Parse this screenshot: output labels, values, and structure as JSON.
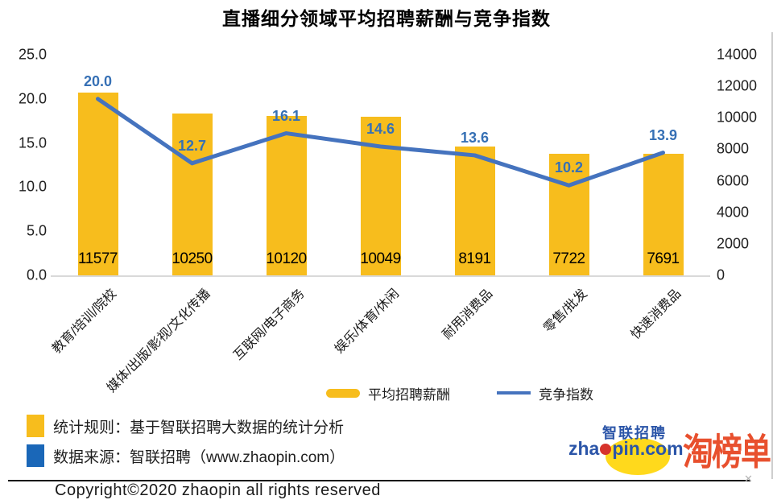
{
  "title": "直播细分领域平均招聘薪酬与竞争指数",
  "chart_data": {
    "type": "bar",
    "combo": "bar+line",
    "title": "直播细分领域平均招聘薪酬与竞争指数",
    "categories": [
      "教育/培训/院校",
      "媒体/出版/影视/文化传播",
      "互联网/电子商务",
      "娱乐/体育/休闲",
      "耐用消费品",
      "零售/批发",
      "快速消费品"
    ],
    "series": [
      {
        "name": "平均招聘薪酬",
        "type": "bar",
        "axis": "right",
        "color": "#F7BD1D",
        "values": [
          11577,
          10250,
          10120,
          10049,
          8191,
          7722,
          7691
        ]
      },
      {
        "name": "竞争指数",
        "type": "line",
        "axis": "left",
        "color": "#4573BE",
        "values": [
          20.0,
          12.7,
          16.1,
          14.6,
          13.6,
          10.2,
          13.9
        ]
      }
    ],
    "left_axis": {
      "min": 0,
      "max": 25,
      "tick_labels": [
        "0.0",
        "5.0",
        "10.0",
        "15.0",
        "20.0",
        "25.0"
      ]
    },
    "right_axis": {
      "min": 0,
      "max": 14000,
      "tick_labels": [
        "0",
        "2000",
        "4000",
        "6000",
        "8000",
        "10000",
        "12000",
        "14000"
      ]
    },
    "grid": false,
    "legend_position": "bottom-center",
    "line_label_color": "#3670B5",
    "bar_label_color": "#000000"
  },
  "legend": {
    "bar_label": "平均招聘薪酬",
    "line_label": "竞争指数"
  },
  "notes": [
    {
      "icon_color": "#F7BD1D",
      "text": "统计规则：基于智联招聘大数据的统计分析"
    },
    {
      "icon_color": "#1A67B8",
      "text": "数据来源：智联招聘（www.zhaopin.com）"
    }
  ],
  "logo": {
    "cn": "智联招聘",
    "url_prefix": "zha",
    "url_suffix": "pin.com",
    "badge": "淘榜单"
  },
  "copyright": "Copyright©2020 zhaopin all rights reserved",
  "colors": {
    "bar": "#F7BD1D",
    "line": "#4573BE",
    "note_blue": "#1A67B8",
    "badge_red": "#E8502E"
  }
}
